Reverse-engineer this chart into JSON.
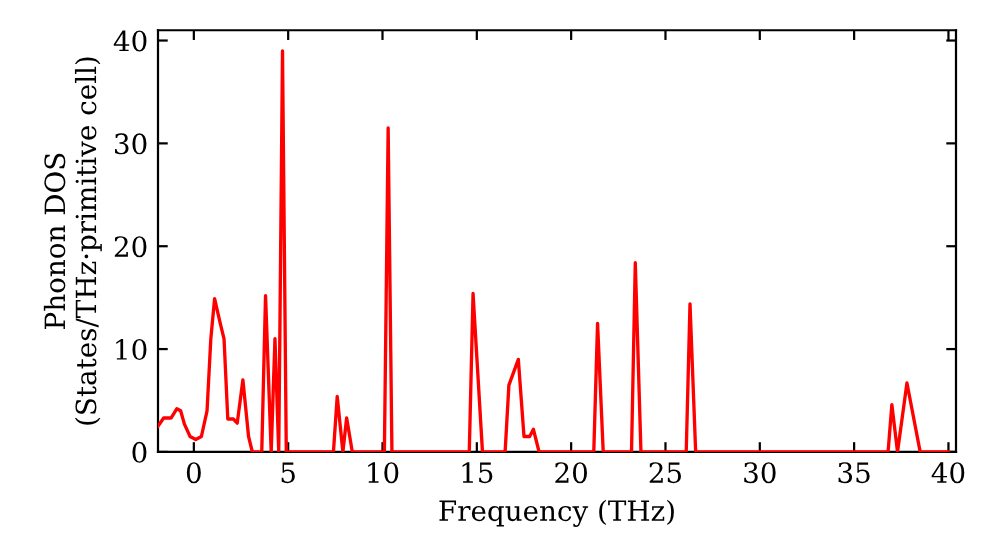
{
  "chart_data": {
    "type": "line",
    "xlabel": "Frequency (THz)",
    "ylabel": "Phonon DOS\n(States/THz·primitive cell)",
    "xlim": [
      -1.9,
      40.4
    ],
    "ylim": [
      0,
      41
    ],
    "xticks": [
      0,
      5,
      10,
      15,
      20,
      25,
      30,
      35,
      40
    ],
    "yticks": [
      0,
      10,
      20,
      30,
      40
    ],
    "grid": false,
    "marker": "none",
    "line_style": "solid",
    "series": [
      {
        "color": "#ff0000",
        "x": [
          -1.9,
          -1.6,
          -1.2,
          -0.9,
          -0.7,
          -0.5,
          -0.2,
          0.1,
          0.4,
          0.7,
          0.9,
          1.1,
          1.4,
          1.6,
          1.8,
          2.1,
          2.3,
          2.6,
          2.9,
          3.1,
          3.6,
          3.8,
          4.1,
          4.3,
          4.5,
          4.7,
          4.9,
          7.4,
          7.6,
          7.9,
          8.1,
          8.4,
          10.1,
          10.3,
          10.5,
          14.6,
          14.8,
          15.3,
          16.5,
          16.7,
          17.2,
          17.5,
          17.8,
          18.0,
          18.3,
          21.2,
          21.4,
          21.7,
          23.2,
          23.4,
          23.7,
          26.1,
          26.3,
          26.6,
          36.8,
          37.0,
          37.3,
          37.8,
          38.5,
          40.0
        ],
        "values": [
          2.5,
          3.3,
          3.3,
          4.2,
          4.0,
          2.7,
          1.5,
          1.2,
          1.5,
          4,
          11,
          14.9,
          12.5,
          11,
          3.2,
          3.2,
          2.8,
          7,
          1.5,
          0,
          0,
          15.2,
          0,
          11,
          0,
          39,
          0,
          0,
          5.4,
          0,
          3.3,
          0,
          0,
          31.5,
          0,
          0,
          15.4,
          0,
          0,
          6.5,
          9,
          1.5,
          1.5,
          2.2,
          0,
          0,
          12.5,
          0,
          0,
          18.4,
          0,
          0,
          14.4,
          0,
          0,
          4.6,
          0,
          6.7,
          0,
          0
        ]
      }
    ]
  }
}
